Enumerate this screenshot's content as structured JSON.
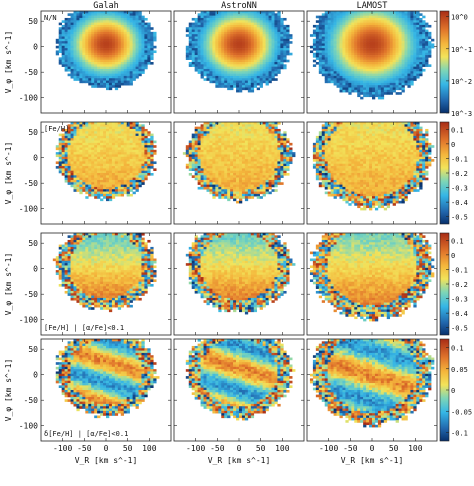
{
  "chart_data": {
    "type": "heatmap",
    "columns": [
      "Galah",
      "AstroNN",
      "LAMOST"
    ],
    "xlabel": "V_R [km s^-1]",
    "ylabel": "V_φ [km s^-1]",
    "xlim": [
      -150,
      150
    ],
    "ylim": [
      -130,
      70
    ],
    "x_ticks": [
      "-100",
      "-50",
      "0",
      "50",
      "100"
    ],
    "y_ticks": [
      "50",
      "0",
      "-50",
      "-100"
    ],
    "rows": [
      {
        "panel_label": "N/N",
        "scale": "log",
        "colorbar_ticks": [
          {
            "label": "10^0",
            "value": 1.0
          },
          {
            "label": "10^-1",
            "value": 0.1
          },
          {
            "label": "10^-2",
            "value": 0.01
          },
          {
            "label": "10^-3",
            "value": 0.001
          }
        ],
        "vmin": 0.001,
        "vmax": 1.5
      },
      {
        "panel_label": "[Fe/H]",
        "scale": "linear",
        "colorbar_ticks": [
          {
            "label": "0.1",
            "value": 0.1
          },
          {
            "label": "0",
            "value": 0.0
          },
          {
            "label": "-0.1",
            "value": -0.1
          },
          {
            "label": "-0.2",
            "value": -0.2
          },
          {
            "label": "-0.3",
            "value": -0.3
          },
          {
            "label": "-0.4",
            "value": -0.4
          },
          {
            "label": "-0.5",
            "value": -0.5
          }
        ],
        "vmin": -0.55,
        "vmax": 0.15
      },
      {
        "panel_label": "[Fe/H] | [α/Fe]<0.1",
        "scale": "linear",
        "colorbar_ticks": [
          {
            "label": "0.1",
            "value": 0.1
          },
          {
            "label": "0",
            "value": 0.0
          },
          {
            "label": "-0.1",
            "value": -0.1
          },
          {
            "label": "-0.2",
            "value": -0.2
          },
          {
            "label": "-0.3",
            "value": -0.3
          },
          {
            "label": "-0.4",
            "value": -0.4
          },
          {
            "label": "-0.5",
            "value": -0.5
          }
        ],
        "vmin": -0.55,
        "vmax": 0.15
      },
      {
        "panel_label": "δ[Fe/H] | [α/Fe]<0.1",
        "scale": "linear",
        "colorbar_ticks": [
          {
            "label": "0.1",
            "value": 0.1
          },
          {
            "label": "0.05",
            "value": 0.05
          },
          {
            "label": "0",
            "value": 0.0
          },
          {
            "label": "-0.05",
            "value": -0.05
          },
          {
            "label": "-0.1",
            "value": -0.1
          }
        ],
        "vmin": -0.12,
        "vmax": 0.12
      }
    ],
    "colormap": "jet-like (blue → cyan → yellow → red)"
  }
}
